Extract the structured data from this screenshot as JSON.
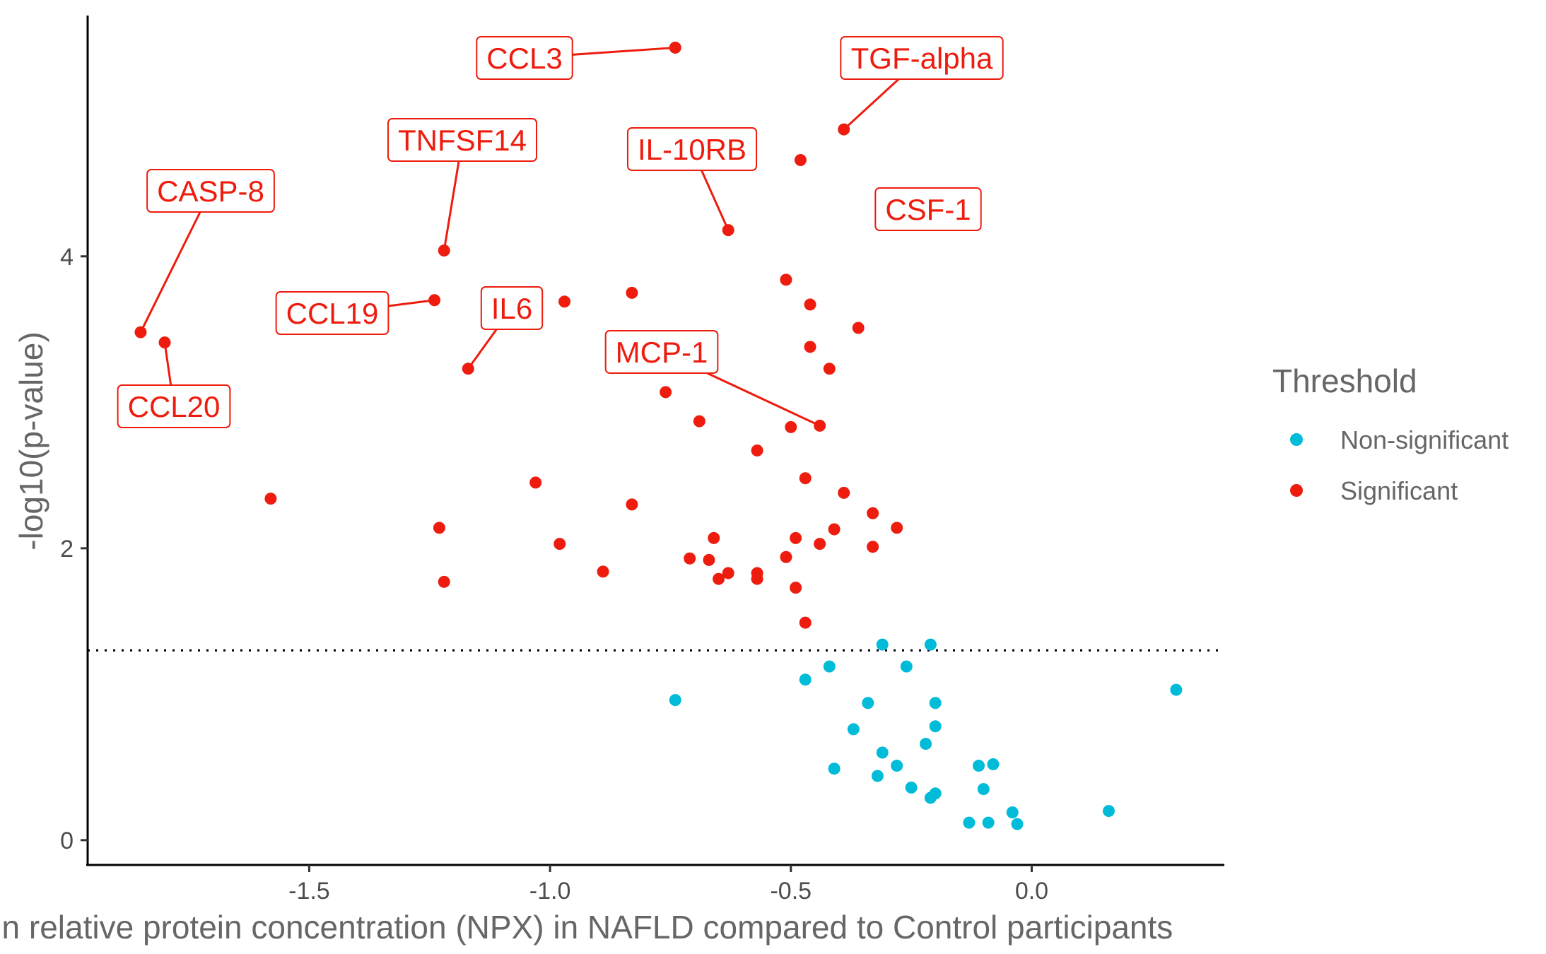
{
  "chart_data": {
    "type": "scatter",
    "xlabel": "Difference in relative protein concentration (NPX) in NAFLD compared to Control participants",
    "ylabel": "-log10(p-value)",
    "xlim": [
      -1.96,
      0.4
    ],
    "ylim": [
      -0.17,
      5.65
    ],
    "x_ticks": [
      -1.5,
      -1.0,
      -0.5,
      0.0
    ],
    "x_tick_labels": [
      "-1.5",
      "-1.0",
      "-0.5",
      "0.0"
    ],
    "y_ticks": [
      0,
      2,
      4
    ],
    "y_tick_labels": [
      "0",
      "2",
      "4"
    ],
    "threshold_line": 1.3,
    "grid": false,
    "legend": {
      "title": "Threshold",
      "placement": "right",
      "entries": [
        {
          "name": "Non-significant",
          "color": "#00bcd8"
        },
        {
          "name": "Significant",
          "color": "#ee1c0e"
        }
      ]
    },
    "series": [
      {
        "name": "Significant",
        "color": "#ee1c0e",
        "points": [
          [
            -0.74,
            5.43
          ],
          [
            -0.39,
            4.87
          ],
          [
            -0.48,
            4.66
          ],
          [
            -0.63,
            4.18
          ],
          [
            -0.28,
            4.24
          ],
          [
            -1.22,
            4.04
          ],
          [
            -1.85,
            3.48
          ],
          [
            -1.8,
            3.41
          ],
          [
            -1.24,
            3.7
          ],
          [
            -0.97,
            3.69
          ],
          [
            -0.83,
            3.75
          ],
          [
            -0.51,
            3.84
          ],
          [
            -0.46,
            3.67
          ],
          [
            -0.36,
            3.51
          ],
          [
            -0.46,
            3.38
          ],
          [
            -0.42,
            3.23
          ],
          [
            -1.17,
            3.23
          ],
          [
            -0.76,
            3.07
          ],
          [
            -0.69,
            2.87
          ],
          [
            -0.5,
            2.83
          ],
          [
            -0.44,
            2.84
          ],
          [
            -0.57,
            2.67
          ],
          [
            -1.03,
            2.45
          ],
          [
            -0.47,
            2.48
          ],
          [
            -0.39,
            2.38
          ],
          [
            -1.58,
            2.34
          ],
          [
            -0.83,
            2.3
          ],
          [
            -0.33,
            2.24
          ],
          [
            -1.23,
            2.14
          ],
          [
            -0.28,
            2.14
          ],
          [
            -0.41,
            2.13
          ],
          [
            -0.66,
            2.07
          ],
          [
            -0.49,
            2.07
          ],
          [
            -0.98,
            2.03
          ],
          [
            -0.44,
            2.03
          ],
          [
            -0.33,
            2.01
          ],
          [
            -0.71,
            1.93
          ],
          [
            -0.67,
            1.92
          ],
          [
            -0.51,
            1.94
          ],
          [
            -0.89,
            1.84
          ],
          [
            -0.63,
            1.83
          ],
          [
            -0.57,
            1.83
          ],
          [
            -0.65,
            1.79
          ],
          [
            -0.57,
            1.79
          ],
          [
            -1.22,
            1.77
          ],
          [
            -0.49,
            1.73
          ],
          [
            -0.47,
            1.49
          ]
        ],
        "labels": [
          {
            "text": "CCL3",
            "x": -0.74,
            "y": 5.43
          },
          {
            "text": "TGF-alpha",
            "x": -0.39,
            "y": 4.87
          },
          {
            "text": "IL-10RB",
            "x": -0.63,
            "y": 4.18
          },
          {
            "text": "CSF-1",
            "x": -0.28,
            "y": 4.24
          },
          {
            "text": "TNFSF14",
            "x": -1.22,
            "y": 4.04
          },
          {
            "text": "CASP-8",
            "x": -1.85,
            "y": 3.48
          },
          {
            "text": "CCL20",
            "x": -1.8,
            "y": 3.41
          },
          {
            "text": "CCL19",
            "x": -1.24,
            "y": 3.7
          },
          {
            "text": "IL6",
            "x": -1.17,
            "y": 3.23
          },
          {
            "text": "MCP-1",
            "x": -0.44,
            "y": 2.84
          }
        ]
      },
      {
        "name": "Non-significant",
        "color": "#00bcd8",
        "points": [
          [
            -0.31,
            1.34
          ],
          [
            -0.21,
            1.34
          ],
          [
            -0.26,
            1.19
          ],
          [
            -0.42,
            1.19
          ],
          [
            -0.47,
            1.1
          ],
          [
            0.3,
            1.03
          ],
          [
            -0.74,
            0.96
          ],
          [
            -0.34,
            0.94
          ],
          [
            -0.2,
            0.94
          ],
          [
            -0.2,
            0.78
          ],
          [
            -0.37,
            0.76
          ],
          [
            -0.22,
            0.66
          ],
          [
            -0.31,
            0.6
          ],
          [
            -0.28,
            0.51
          ],
          [
            -0.08,
            0.52
          ],
          [
            -0.11,
            0.51
          ],
          [
            -0.41,
            0.49
          ],
          [
            -0.32,
            0.44
          ],
          [
            -0.25,
            0.36
          ],
          [
            -0.1,
            0.35
          ],
          [
            -0.2,
            0.32
          ],
          [
            -0.21,
            0.29
          ],
          [
            0.16,
            0.2
          ],
          [
            -0.04,
            0.19
          ],
          [
            -0.13,
            0.12
          ],
          [
            -0.09,
            0.12
          ],
          [
            -0.03,
            0.11
          ]
        ]
      }
    ]
  }
}
